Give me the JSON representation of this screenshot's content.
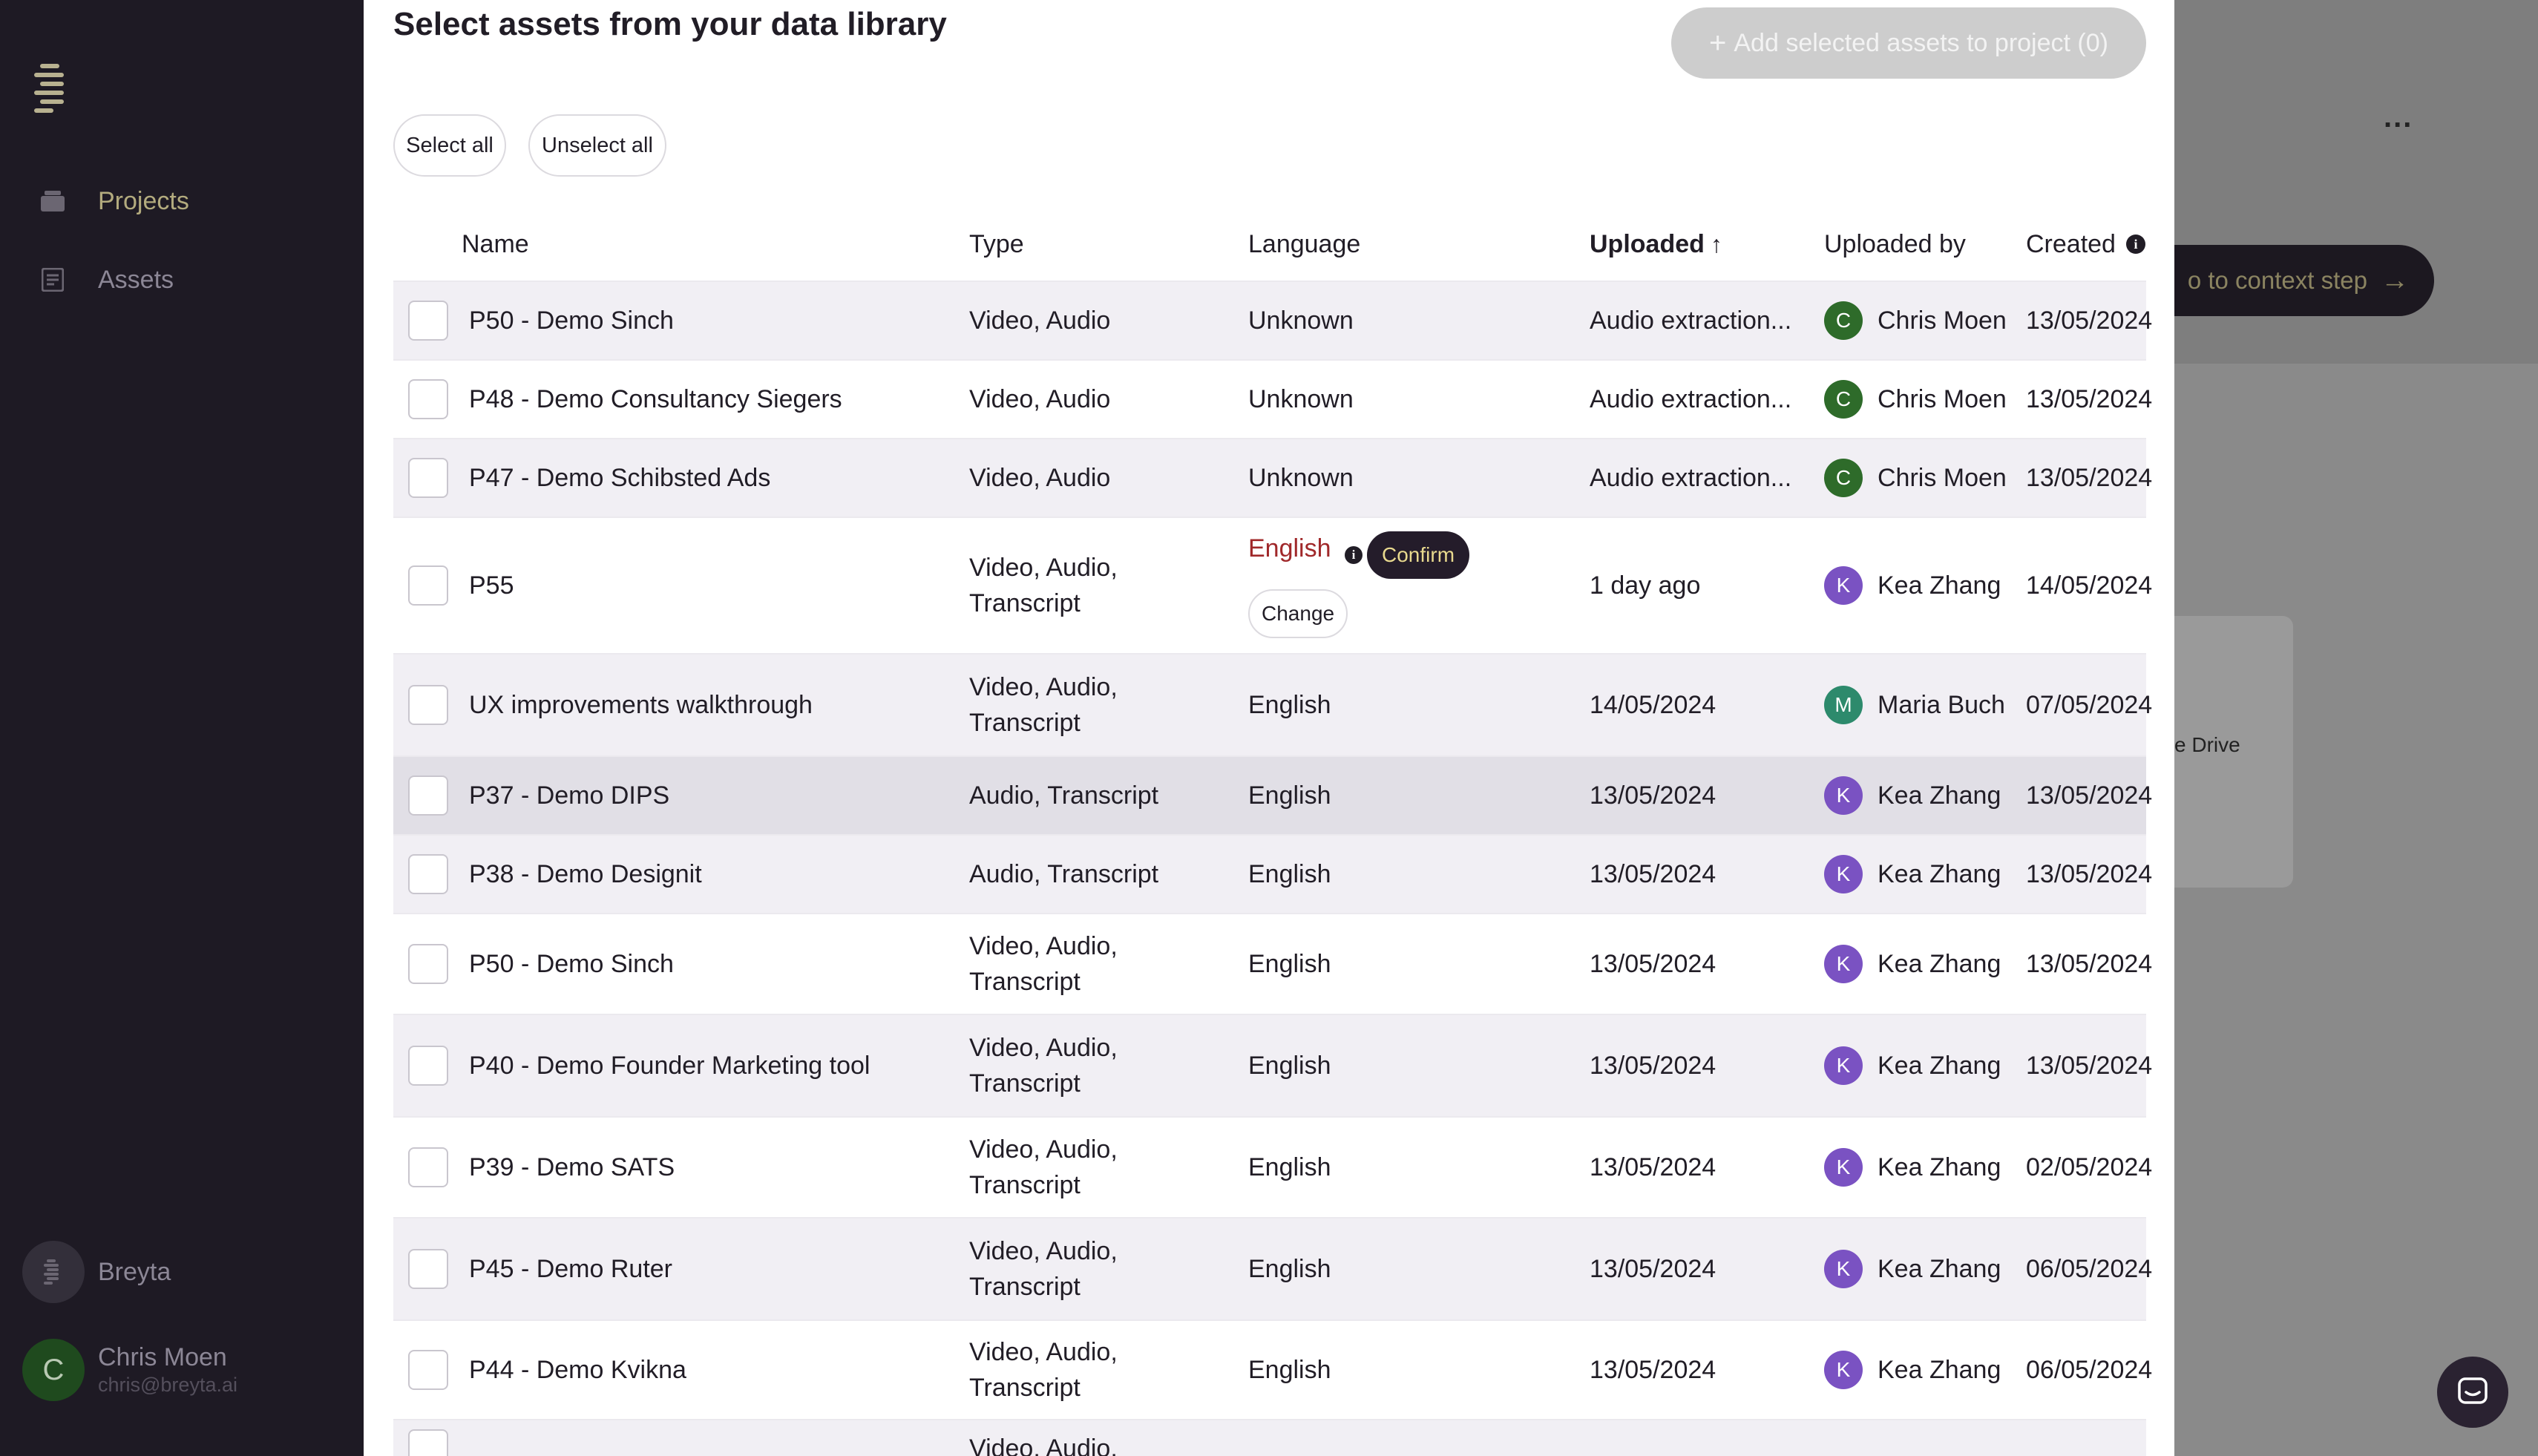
{
  "sidebar": {
    "nav": [
      {
        "label": "Projects",
        "icon": "folder-icon"
      },
      {
        "label": "Assets",
        "icon": "document-icon"
      }
    ],
    "workspace": {
      "name": "Breyta"
    },
    "user": {
      "initial": "C",
      "name": "Chris Moen",
      "email": "chris@breyta.ai"
    }
  },
  "background": {
    "more": "...",
    "cta_label": "o to context step",
    "card_text": "e Drive"
  },
  "modal": {
    "title": "Select assets from your data library",
    "add_button": "Add selected assets to project (0)",
    "select_all": "Select all",
    "unselect_all": "Unselect all"
  },
  "columns": {
    "name": "Name",
    "type": "Type",
    "language": "Language",
    "uploaded": "Uploaded",
    "uploaded_by": "Uploaded by",
    "created": "Created"
  },
  "pending": {
    "language": "English",
    "confirm": "Confirm",
    "change": "Change"
  },
  "rows": [
    {
      "name": "P50 - Demo Sinch",
      "type": "Video, Audio",
      "language": "Unknown",
      "uploaded": "Audio extraction...",
      "uploaded_by": "Chris Moen",
      "initial": "C",
      "created": "13/05/2024"
    },
    {
      "name": "P48 - Demo Consultancy Siegers",
      "type": "Video, Audio",
      "language": "Unknown",
      "uploaded": "Audio extraction...",
      "uploaded_by": "Chris Moen",
      "initial": "C",
      "created": "13/05/2024"
    },
    {
      "name": "P47 - Demo Schibsted Ads",
      "type": "Video, Audio",
      "language": "Unknown",
      "uploaded": "Audio extraction...",
      "uploaded_by": "Chris Moen",
      "initial": "C",
      "created": "13/05/2024"
    },
    {
      "name": "P55",
      "type": "Video, Audio, Transcript",
      "language": "English",
      "uploaded": "1 day ago",
      "uploaded_by": "Kea Zhang",
      "initial": "K",
      "created": "14/05/2024"
    },
    {
      "name": "UX improvements walkthrough",
      "type": "Video, Audio, Transcript",
      "language": "English",
      "uploaded": "14/05/2024",
      "uploaded_by": "Maria Buch",
      "initial": "M",
      "created": "07/05/2024"
    },
    {
      "name": "P37 - Demo DIPS",
      "type": "Audio, Transcript",
      "language": "English",
      "uploaded": "13/05/2024",
      "uploaded_by": "Kea Zhang",
      "initial": "K",
      "created": "13/05/2024"
    },
    {
      "name": "P38 - Demo Designit",
      "type": "Audio, Transcript",
      "language": "English",
      "uploaded": "13/05/2024",
      "uploaded_by": "Kea Zhang",
      "initial": "K",
      "created": "13/05/2024"
    },
    {
      "name": "P50 - Demo Sinch",
      "type": "Video, Audio, Transcript",
      "language": "English",
      "uploaded": "13/05/2024",
      "uploaded_by": "Kea Zhang",
      "initial": "K",
      "created": "13/05/2024"
    },
    {
      "name": "P40 - Demo Founder Marketing tool",
      "type": "Video, Audio, Transcript",
      "language": "English",
      "uploaded": "13/05/2024",
      "uploaded_by": "Kea Zhang",
      "initial": "K",
      "created": "13/05/2024"
    },
    {
      "name": "P39 - Demo SATS",
      "type": "Video, Audio, Transcript",
      "language": "English",
      "uploaded": "13/05/2024",
      "uploaded_by": "Kea Zhang",
      "initial": "K",
      "created": "02/05/2024"
    },
    {
      "name": "P45 - Demo Ruter",
      "type": "Video, Audio, Transcript",
      "language": "English",
      "uploaded": "13/05/2024",
      "uploaded_by": "Kea Zhang",
      "initial": "K",
      "created": "06/05/2024"
    },
    {
      "name": "P44 - Demo Kvikna",
      "type": "Video, Audio, Transcript",
      "language": "English",
      "uploaded": "13/05/2024",
      "uploaded_by": "Kea Zhang",
      "initial": "K",
      "created": "06/05/2024"
    },
    {
      "name": "",
      "type": "Video, Audio,",
      "language": "",
      "uploaded": "",
      "uploaded_by": "",
      "initial": "",
      "created": ""
    }
  ]
}
